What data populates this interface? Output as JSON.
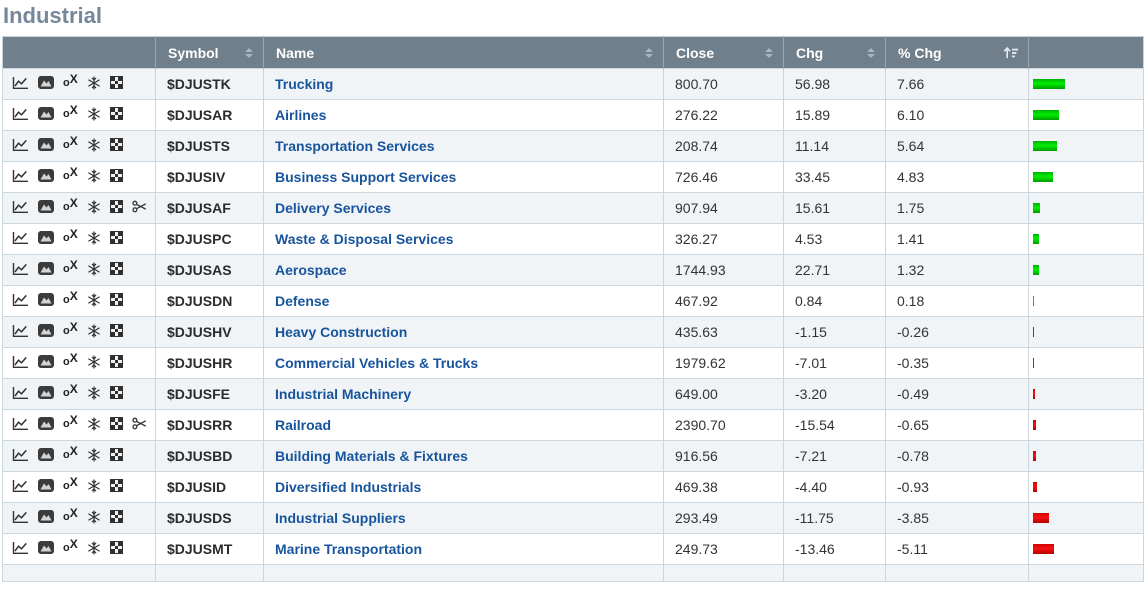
{
  "page": {
    "title": "Industrial"
  },
  "colors": {
    "header_background": "#6f7f8c",
    "row_stripe": "#f0f4f7",
    "name_link": "#17549c",
    "title_text": "#76879b",
    "positive_bar": "#00dd00",
    "negative_bar": "#dd0000"
  },
  "table": {
    "columns": [
      {
        "key": "tools",
        "label": "",
        "sort": "none"
      },
      {
        "key": "symbol",
        "label": "Symbol",
        "sort": "sortable"
      },
      {
        "key": "name",
        "label": "Name",
        "sort": "sortable"
      },
      {
        "key": "close",
        "label": "Close",
        "sort": "sortable"
      },
      {
        "key": "chg",
        "label": "Chg",
        "sort": "sortable"
      },
      {
        "key": "pct_chg",
        "label": "% Chg",
        "sort": "sorted-desc"
      },
      {
        "key": "bar",
        "label": "",
        "sort": "none"
      }
    ],
    "rows": [
      {
        "tools": [
          "sharpchart-icon",
          "gallery-icon",
          "point-and-figure-icon",
          "seasonality-icon",
          "candleglance-icon"
        ],
        "symbol": "$DJUSTK",
        "name": "Trucking",
        "close": "800.70",
        "chg": "56.98",
        "pct_chg": "7.66",
        "pct_chg_value": 7.66
      },
      {
        "tools": [
          "sharpchart-icon",
          "gallery-icon",
          "point-and-figure-icon",
          "seasonality-icon",
          "candleglance-icon"
        ],
        "symbol": "$DJUSAR",
        "name": "Airlines",
        "close": "276.22",
        "chg": "15.89",
        "pct_chg": "6.10",
        "pct_chg_value": 6.1
      },
      {
        "tools": [
          "sharpchart-icon",
          "gallery-icon",
          "point-and-figure-icon",
          "seasonality-icon",
          "candleglance-icon"
        ],
        "symbol": "$DJUSTS",
        "name": "Transportation Services",
        "close": "208.74",
        "chg": "11.14",
        "pct_chg": "5.64",
        "pct_chg_value": 5.64
      },
      {
        "tools": [
          "sharpchart-icon",
          "gallery-icon",
          "point-and-figure-icon",
          "seasonality-icon",
          "candleglance-icon"
        ],
        "symbol": "$DJUSIV",
        "name": "Business Support Services",
        "close": "726.46",
        "chg": "33.45",
        "pct_chg": "4.83",
        "pct_chg_value": 4.83
      },
      {
        "tools": [
          "sharpchart-icon",
          "gallery-icon",
          "point-and-figure-icon",
          "seasonality-icon",
          "candleglance-icon",
          "scissors-icon"
        ],
        "symbol": "$DJUSAF",
        "name": "Delivery Services",
        "close": "907.94",
        "chg": "15.61",
        "pct_chg": "1.75",
        "pct_chg_value": 1.75
      },
      {
        "tools": [
          "sharpchart-icon",
          "gallery-icon",
          "point-and-figure-icon",
          "seasonality-icon",
          "candleglance-icon"
        ],
        "symbol": "$DJUSPC",
        "name": "Waste & Disposal Services",
        "close": "326.27",
        "chg": "4.53",
        "pct_chg": "1.41",
        "pct_chg_value": 1.41
      },
      {
        "tools": [
          "sharpchart-icon",
          "gallery-icon",
          "point-and-figure-icon",
          "seasonality-icon",
          "candleglance-icon"
        ],
        "symbol": "$DJUSAS",
        "name": "Aerospace",
        "close": "1744.93",
        "chg": "22.71",
        "pct_chg": "1.32",
        "pct_chg_value": 1.32
      },
      {
        "tools": [
          "sharpchart-icon",
          "gallery-icon",
          "point-and-figure-icon",
          "seasonality-icon",
          "candleglance-icon"
        ],
        "symbol": "$DJUSDN",
        "name": "Defense",
        "close": "467.92",
        "chg": "0.84",
        "pct_chg": "0.18",
        "pct_chg_value": 0.18
      },
      {
        "tools": [
          "sharpchart-icon",
          "gallery-icon",
          "point-and-figure-icon",
          "seasonality-icon",
          "candleglance-icon"
        ],
        "symbol": "$DJUSHV",
        "name": "Heavy Construction",
        "close": "435.63",
        "chg": "-1.15",
        "pct_chg": "-0.26",
        "pct_chg_value": -0.26
      },
      {
        "tools": [
          "sharpchart-icon",
          "gallery-icon",
          "point-and-figure-icon",
          "seasonality-icon",
          "candleglance-icon"
        ],
        "symbol": "$DJUSHR",
        "name": "Commercial Vehicles & Trucks",
        "close": "1979.62",
        "chg": "-7.01",
        "pct_chg": "-0.35",
        "pct_chg_value": -0.35
      },
      {
        "tools": [
          "sharpchart-icon",
          "gallery-icon",
          "point-and-figure-icon",
          "seasonality-icon",
          "candleglance-icon"
        ],
        "symbol": "$DJUSFE",
        "name": "Industrial Machinery",
        "close": "649.00",
        "chg": "-3.20",
        "pct_chg": "-0.49",
        "pct_chg_value": -0.49
      },
      {
        "tools": [
          "sharpchart-icon",
          "gallery-icon",
          "point-and-figure-icon",
          "seasonality-icon",
          "candleglance-icon",
          "scissors-icon"
        ],
        "symbol": "$DJUSRR",
        "name": "Railroad",
        "close": "2390.70",
        "chg": "-15.54",
        "pct_chg": "-0.65",
        "pct_chg_value": -0.65
      },
      {
        "tools": [
          "sharpchart-icon",
          "gallery-icon",
          "point-and-figure-icon",
          "seasonality-icon",
          "candleglance-icon"
        ],
        "symbol": "$DJUSBD",
        "name": "Building Materials & Fixtures",
        "close": "916.56",
        "chg": "-7.21",
        "pct_chg": "-0.78",
        "pct_chg_value": -0.78
      },
      {
        "tools": [
          "sharpchart-icon",
          "gallery-icon",
          "point-and-figure-icon",
          "seasonality-icon",
          "candleglance-icon"
        ],
        "symbol": "$DJUSID",
        "name": "Diversified Industrials",
        "close": "469.38",
        "chg": "-4.40",
        "pct_chg": "-0.93",
        "pct_chg_value": -0.93
      },
      {
        "tools": [
          "sharpchart-icon",
          "gallery-icon",
          "point-and-figure-icon",
          "seasonality-icon",
          "candleglance-icon"
        ],
        "symbol": "$DJUSDS",
        "name": "Industrial Suppliers",
        "close": "293.49",
        "chg": "-11.75",
        "pct_chg": "-3.85",
        "pct_chg_value": -3.85
      },
      {
        "tools": [
          "sharpchart-icon",
          "gallery-icon",
          "point-and-figure-icon",
          "seasonality-icon",
          "candleglance-icon"
        ],
        "symbol": "$DJUSMT",
        "name": "Marine Transportation",
        "close": "249.73",
        "chg": "-13.46",
        "pct_chg": "-5.11",
        "pct_chg_value": -5.11
      }
    ]
  }
}
